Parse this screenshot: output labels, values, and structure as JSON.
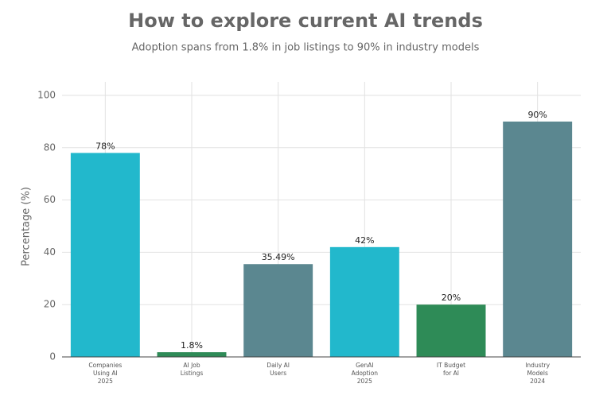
{
  "chart_data": {
    "type": "bar",
    "title": "How to explore current AI trends",
    "subtitle": "Adoption spans from 1.8% in job listings to 90% in industry models",
    "y_label": "Percentage (%)",
    "categories": [
      "Companies\nUsing AI\n2025",
      "AI Job\nListings",
      "Daily AI\nUsers",
      "GenAI\nAdoption\n2025",
      "IT Budget\nfor AI",
      "Industry\nModels\n2024"
    ],
    "values": [
      78,
      1.8,
      35.49,
      42,
      20,
      90
    ],
    "value_labels": [
      "78%",
      "1.8%",
      "35.49%",
      "42%",
      "20%",
      "90%"
    ],
    "colors": [
      "#22b8cc",
      "#2e8b57",
      "#5b8790",
      "#22b8cc",
      "#2e8b57",
      "#5b8790"
    ],
    "ylim": [
      0,
      100
    ],
    "yticks": [
      0,
      20,
      40,
      60,
      80,
      100
    ],
    "grid": true
  }
}
